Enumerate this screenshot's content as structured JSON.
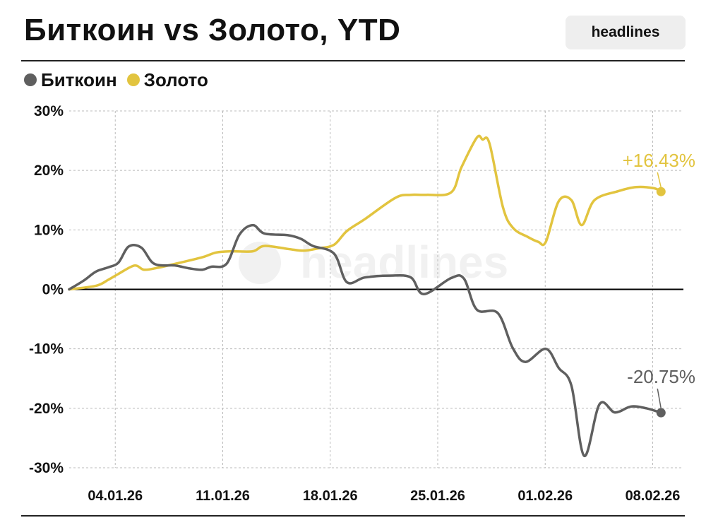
{
  "header": {
    "title": "Биткоин vs Золото, YTD",
    "brand": "headlines"
  },
  "watermark": "headlines",
  "colors": {
    "bitcoin": "#5f5f5f",
    "gold": "#e2c43f",
    "grid": "#bbbbbb",
    "zero_line": "#000000"
  },
  "chart_data": {
    "type": "line",
    "title": "Биткоин vs Золото, YTD",
    "xlabel": "",
    "ylabel": "",
    "ylim": [
      -30,
      30
    ],
    "xlim": [
      "2026-01-01",
      "2026-02-10"
    ],
    "yticks": [
      30,
      20,
      10,
      0,
      -10,
      -20,
      -30
    ],
    "ytick_labels": [
      "30%",
      "20%",
      "10%",
      "0%",
      "-10%",
      "-20%",
      "-30%"
    ],
    "xticks": [
      "2026-01-04",
      "2026-01-11",
      "2026-01-18",
      "2026-01-25",
      "2026-02-01",
      "2026-02-08"
    ],
    "xtick_labels": [
      "04.01.26",
      "11.01.26",
      "18.01.26",
      "25.01.26",
      "01.02.26",
      "08.02.26"
    ],
    "grid": true,
    "legend": "top-left",
    "series": [
      {
        "name": "Биткоин",
        "end_label": "-20.75%",
        "points": [
          [
            "2026-01-01T00:00",
            0
          ],
          [
            "2026-01-01T23:00",
            1.5
          ],
          [
            "2026-01-02T18:00",
            3.0
          ],
          [
            "2026-01-03T13:00",
            3.7
          ],
          [
            "2026-01-04T05:00",
            4.5
          ],
          [
            "2026-01-04T21:00",
            7.2
          ],
          [
            "2026-01-05T17:00",
            7.0
          ],
          [
            "2026-01-06T13:00",
            4.3
          ],
          [
            "2026-01-07T22:00",
            4.0
          ],
          [
            "2026-01-08T21:00",
            3.5
          ],
          [
            "2026-01-09T16:00",
            3.3
          ],
          [
            "2026-01-10T06:00",
            3.8
          ],
          [
            "2026-01-11T06:00",
            4.3
          ],
          [
            "2026-01-12T02:00",
            9.2
          ],
          [
            "2026-01-12T23:00",
            10.8
          ],
          [
            "2026-01-13T17:00",
            9.4
          ],
          [
            "2026-01-15T06:00",
            9.1
          ],
          [
            "2026-01-16T02:00",
            8.5
          ],
          [
            "2026-01-16T21:00",
            7.3
          ],
          [
            "2026-01-18T06:00",
            6.0
          ],
          [
            "2026-01-19T02:00",
            1.2
          ],
          [
            "2026-01-20T06:00",
            2.0
          ],
          [
            "2026-01-21T21:00",
            2.3
          ],
          [
            "2026-01-23T06:00",
            2.0
          ],
          [
            "2026-01-24T02:00",
            -0.8
          ],
          [
            "2026-01-25T21:00",
            1.9
          ],
          [
            "2026-01-26T17:00",
            1.8
          ],
          [
            "2026-01-27T13:00",
            -3.4
          ],
          [
            "2026-01-28T22:00",
            -4.0
          ],
          [
            "2026-01-29T21:00",
            -9.8
          ],
          [
            "2026-01-30T17:00",
            -12.2
          ],
          [
            "2026-02-01T01:00",
            -10.0
          ],
          [
            "2026-02-01T21:00",
            -13.2
          ],
          [
            "2026-02-02T17:00",
            -16.2
          ],
          [
            "2026-02-03T13:00",
            -28.0
          ],
          [
            "2026-02-04T13:00",
            -19.3
          ],
          [
            "2026-02-05T13:00",
            -20.7
          ],
          [
            "2026-02-06T14:00",
            -19.7
          ],
          [
            "2026-02-07T14:00",
            -20.0
          ],
          [
            "2026-02-08T13:00",
            -20.75
          ]
        ]
      },
      {
        "name": "Золото",
        "end_label": "+16.43%",
        "points": [
          [
            "2026-01-01T00:00",
            0
          ],
          [
            "2026-01-02T18:00",
            0.6
          ],
          [
            "2026-01-03T13:00",
            1.6
          ],
          [
            "2026-01-04T05:00",
            2.6
          ],
          [
            "2026-01-05T06:00",
            4.0
          ],
          [
            "2026-01-05T21:00",
            3.3
          ],
          [
            "2026-01-06T17:00",
            3.6
          ],
          [
            "2026-01-08T02:00",
            4.4
          ],
          [
            "2026-01-09T16:00",
            5.4
          ],
          [
            "2026-01-10T14:00",
            6.2
          ],
          [
            "2026-01-11T14:00",
            6.4
          ],
          [
            "2026-01-12T23:00",
            6.4
          ],
          [
            "2026-01-13T17:00",
            7.3
          ],
          [
            "2026-01-15T06:00",
            6.8
          ],
          [
            "2026-01-16T06:00",
            6.5
          ],
          [
            "2026-01-17T06:00",
            6.9
          ],
          [
            "2026-01-18T06:00",
            7.5
          ],
          [
            "2026-01-19T02:00",
            9.8
          ],
          [
            "2026-01-20T06:00",
            11.8
          ],
          [
            "2026-01-22T06:00",
            15.4
          ],
          [
            "2026-01-23T06:00",
            15.9
          ],
          [
            "2026-01-24T06:00",
            15.9
          ],
          [
            "2026-01-25T21:00",
            16.3
          ],
          [
            "2026-01-26T13:00",
            20.5
          ],
          [
            "2026-01-27T13:00",
            25.5
          ],
          [
            "2026-01-27T22:00",
            25.2
          ],
          [
            "2026-01-28T09:00",
            24.5
          ],
          [
            "2026-01-29T06:00",
            13.8
          ],
          [
            "2026-01-29T22:00",
            10.3
          ],
          [
            "2026-01-30T21:00",
            8.8
          ],
          [
            "2026-01-31T13:00",
            8.0
          ],
          [
            "2026-02-01T01:00",
            8.0
          ],
          [
            "2026-02-01T21:00",
            14.8
          ],
          [
            "2026-02-02T17:00",
            15.0
          ],
          [
            "2026-02-03T09:00",
            10.8
          ],
          [
            "2026-02-04T05:00",
            15.0
          ],
          [
            "2026-02-05T18:00",
            16.5
          ],
          [
            "2026-02-06T22:00",
            17.2
          ],
          [
            "2026-02-08T02:00",
            17.0
          ],
          [
            "2026-02-08T13:00",
            16.43
          ]
        ]
      }
    ]
  }
}
